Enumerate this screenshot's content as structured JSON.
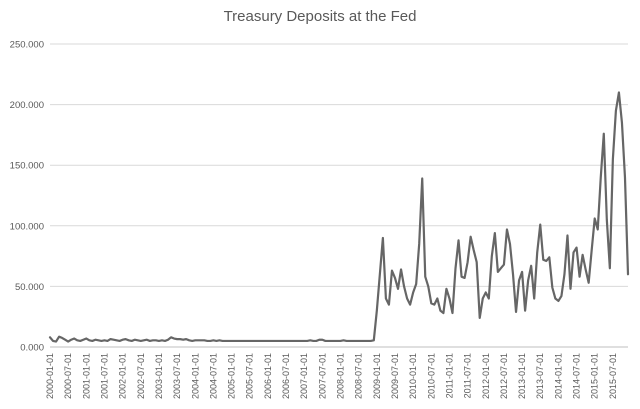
{
  "chart_data": {
    "type": "line",
    "title": "Treasury Deposits at the Fed",
    "xlabel": "",
    "ylabel": "",
    "ylim": [
      0,
      250000
    ],
    "yticks": [
      0,
      50000,
      100000,
      150000,
      200000,
      250000
    ],
    "ytick_labels": [
      "0.000",
      "50.000",
      "100.000",
      "150.000",
      "200.000",
      "250.000"
    ],
    "grid": "horizontal",
    "legend": "none",
    "line_color": "#666666",
    "x_tick_labels": [
      "2000-01-01",
      "2000-07-01",
      "2001-01-01",
      "2001-07-01",
      "2002-01-01",
      "2002-07-01",
      "2003-01-01",
      "2003-07-01",
      "2004-01-01",
      "2004-07-01",
      "2005-01-01",
      "2005-07-01",
      "2006-01-01",
      "2006-07-01",
      "2007-01-01",
      "2007-07-01",
      "2008-01-01",
      "2008-07-01",
      "2009-01-01",
      "2009-07-01",
      "2010-01-01",
      "2010-07-01",
      "2011-01-01",
      "2011-07-01",
      "2012-01-01",
      "2012-07-01",
      "2013-01-01",
      "2013-07-01",
      "2014-01-01",
      "2014-07-01",
      "2015-01-01",
      "2015-07-01"
    ],
    "series": [
      {
        "x": [
          "2000-01",
          "2000-02",
          "2000-03",
          "2000-04",
          "2000-05",
          "2000-06",
          "2000-07",
          "2000-08",
          "2000-09",
          "2000-10",
          "2000-11",
          "2000-12",
          "2001-01",
          "2001-02",
          "2001-03",
          "2001-04",
          "2001-05",
          "2001-06",
          "2001-07",
          "2001-08",
          "2001-09",
          "2001-10",
          "2001-11",
          "2001-12",
          "2002-01",
          "2002-02",
          "2002-03",
          "2002-04",
          "2002-05",
          "2002-06",
          "2002-07",
          "2002-08",
          "2002-09",
          "2002-10",
          "2002-11",
          "2002-12",
          "2003-01",
          "2003-02",
          "2003-03",
          "2003-04",
          "2003-05",
          "2003-06",
          "2003-07",
          "2003-08",
          "2003-09",
          "2003-10",
          "2003-11",
          "2003-12",
          "2004-01",
          "2004-02",
          "2004-03",
          "2004-04",
          "2004-05",
          "2004-06",
          "2004-07",
          "2004-08",
          "2004-09",
          "2004-10",
          "2004-11",
          "2004-12",
          "2005-01",
          "2005-02",
          "2005-03",
          "2005-04",
          "2005-05",
          "2005-06",
          "2005-07",
          "2005-08",
          "2005-09",
          "2005-10",
          "2005-11",
          "2005-12",
          "2006-01",
          "2006-02",
          "2006-03",
          "2006-04",
          "2006-05",
          "2006-06",
          "2006-07",
          "2006-08",
          "2006-09",
          "2006-10",
          "2006-11",
          "2006-12",
          "2007-01",
          "2007-02",
          "2007-03",
          "2007-04",
          "2007-05",
          "2007-06",
          "2007-07",
          "2007-08",
          "2007-09",
          "2007-10",
          "2007-11",
          "2007-12",
          "2008-01",
          "2008-02",
          "2008-03",
          "2008-04",
          "2008-05",
          "2008-06",
          "2008-07",
          "2008-08",
          "2008-09",
          "2008-10",
          "2008-11",
          "2008-12",
          "2009-01",
          "2009-02",
          "2009-03",
          "2009-04",
          "2009-05",
          "2009-06",
          "2009-07",
          "2009-08",
          "2009-09",
          "2009-10",
          "2009-11",
          "2009-12",
          "2010-01",
          "2010-02",
          "2010-03",
          "2010-04",
          "2010-05",
          "2010-06",
          "2010-07",
          "2010-08",
          "2010-09",
          "2010-10",
          "2010-11",
          "2010-12",
          "2011-01",
          "2011-02",
          "2011-03",
          "2011-04",
          "2011-05",
          "2011-06",
          "2011-07",
          "2011-08",
          "2011-09",
          "2011-10",
          "2011-11",
          "2011-12",
          "2012-01",
          "2012-02",
          "2012-03",
          "2012-04",
          "2012-05",
          "2012-06",
          "2012-07",
          "2012-08",
          "2012-09",
          "2012-10",
          "2012-11",
          "2012-12",
          "2013-01",
          "2013-02",
          "2013-03",
          "2013-04",
          "2013-05",
          "2013-06",
          "2013-07",
          "2013-08",
          "2013-09",
          "2013-10",
          "2013-11",
          "2013-12",
          "2014-01",
          "2014-02",
          "2014-03",
          "2014-04",
          "2014-05",
          "2014-06",
          "2014-07",
          "2014-08",
          "2014-09",
          "2014-10",
          "2014-11",
          "2014-12",
          "2015-01",
          "2015-02",
          "2015-03",
          "2015-04",
          "2015-05",
          "2015-06",
          "2015-07",
          "2015-08",
          "2015-09",
          "2015-10",
          "2015-11",
          "2015-12"
        ],
        "values": [
          8000,
          5000,
          4500,
          8500,
          7500,
          6000,
          4500,
          6000,
          7000,
          5500,
          5000,
          6000,
          7000,
          5500,
          5000,
          6000,
          5500,
          5000,
          5500,
          5000,
          6500,
          6000,
          5500,
          5000,
          6000,
          6500,
          5500,
          5000,
          6000,
          5500,
          5000,
          5500,
          6000,
          5000,
          5500,
          5500,
          5000,
          5500,
          5000,
          6000,
          8000,
          7000,
          6500,
          6500,
          6000,
          6500,
          5500,
          5000,
          5500,
          5500,
          5500,
          5500,
          5000,
          5000,
          5500,
          5000,
          5500,
          5000,
          5000,
          5000,
          5000,
          5000,
          5000,
          5000,
          5000,
          5000,
          5000,
          5000,
          5000,
          5000,
          5000,
          5000,
          5000,
          5000,
          5000,
          5000,
          5000,
          5000,
          5000,
          5000,
          5000,
          5000,
          5000,
          5000,
          5000,
          5000,
          5500,
          5000,
          5000,
          6000,
          6000,
          5000,
          5000,
          5000,
          5000,
          5000,
          5000,
          5500,
          5000,
          5000,
          5000,
          5000,
          5000,
          5000,
          5000,
          5000,
          5000,
          5500,
          30000,
          60000,
          90000,
          40000,
          35000,
          63000,
          57000,
          48000,
          64000,
          50000,
          40000,
          35000,
          45000,
          52000,
          85000,
          139000,
          58000,
          50000,
          36000,
          35000,
          40000,
          30000,
          28000,
          48000,
          40000,
          28000,
          65000,
          88000,
          58000,
          57000,
          70000,
          91000,
          80000,
          70000,
          24000,
          40000,
          45000,
          40000,
          75000,
          94000,
          62000,
          65000,
          68000,
          97000,
          85000,
          60000,
          29000,
          55000,
          62000,
          30000,
          55000,
          67000,
          40000,
          78000,
          101000,
          72000,
          71000,
          74000,
          49000,
          40000,
          38000,
          42000,
          60000,
          92000,
          48000,
          78000,
          82000,
          58000,
          76000,
          64000,
          53000,
          80000,
          106000,
          97000,
          140000,
          176000,
          105000,
          65000,
          155000,
          195000,
          210000,
          185000,
          140000,
          60000
        ]
      }
    ]
  }
}
